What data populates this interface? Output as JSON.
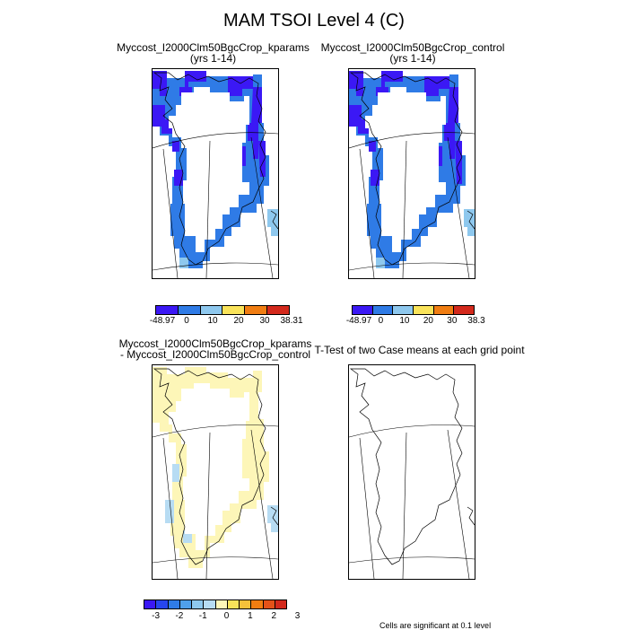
{
  "title": "MAM TSOI Level 4 (C)",
  "panels": [
    {
      "title_line1": "Myccost_I2000Clm50BgcCrop_kparams",
      "title_line2": "(yrs 1-14)"
    },
    {
      "title_line1": "Myccost_I2000Clm50BgcCrop_control",
      "title_line2": "(yrs 1-14)"
    },
    {
      "title_line1": "Myccost_I2000Clm50BgcCrop_kparams",
      "title_line2": " - Myccost_I2000Clm50BgcCrop_control"
    },
    {
      "title_line1": "T-Test of two Case means at each grid point",
      "title_line2": ""
    }
  ],
  "colorbars": [
    {
      "colors": [
        "#3b18f5",
        "#2f7be6",
        "#8ec8ee",
        "#f9e35a",
        "#f07d12",
        "#d3291c"
      ],
      "labels": [
        "-48.97",
        "0",
        "10",
        "20",
        "30",
        "38.31"
      ]
    },
    {
      "colors": [
        "#3b18f5",
        "#2f7be6",
        "#8ec8ee",
        "#f9e35a",
        "#f07d12",
        "#d3291c"
      ],
      "labels": [
        "-48.97",
        "0",
        "10",
        "20",
        "30",
        "38.3"
      ]
    },
    {
      "colors": [
        "#3b18f5",
        "#2746ef",
        "#2f7be6",
        "#4fa0ea",
        "#8ec8ee",
        "#b7dcf3",
        "#fdf6b8",
        "#f9e35a",
        "#f6c13a",
        "#f07d12",
        "#e45219",
        "#d3291c"
      ],
      "labels": [
        "-3",
        "-2",
        "-1",
        "0",
        "1",
        "2",
        "3"
      ]
    }
  ],
  "footnote": "Cells are significant at 0.1 level"
}
